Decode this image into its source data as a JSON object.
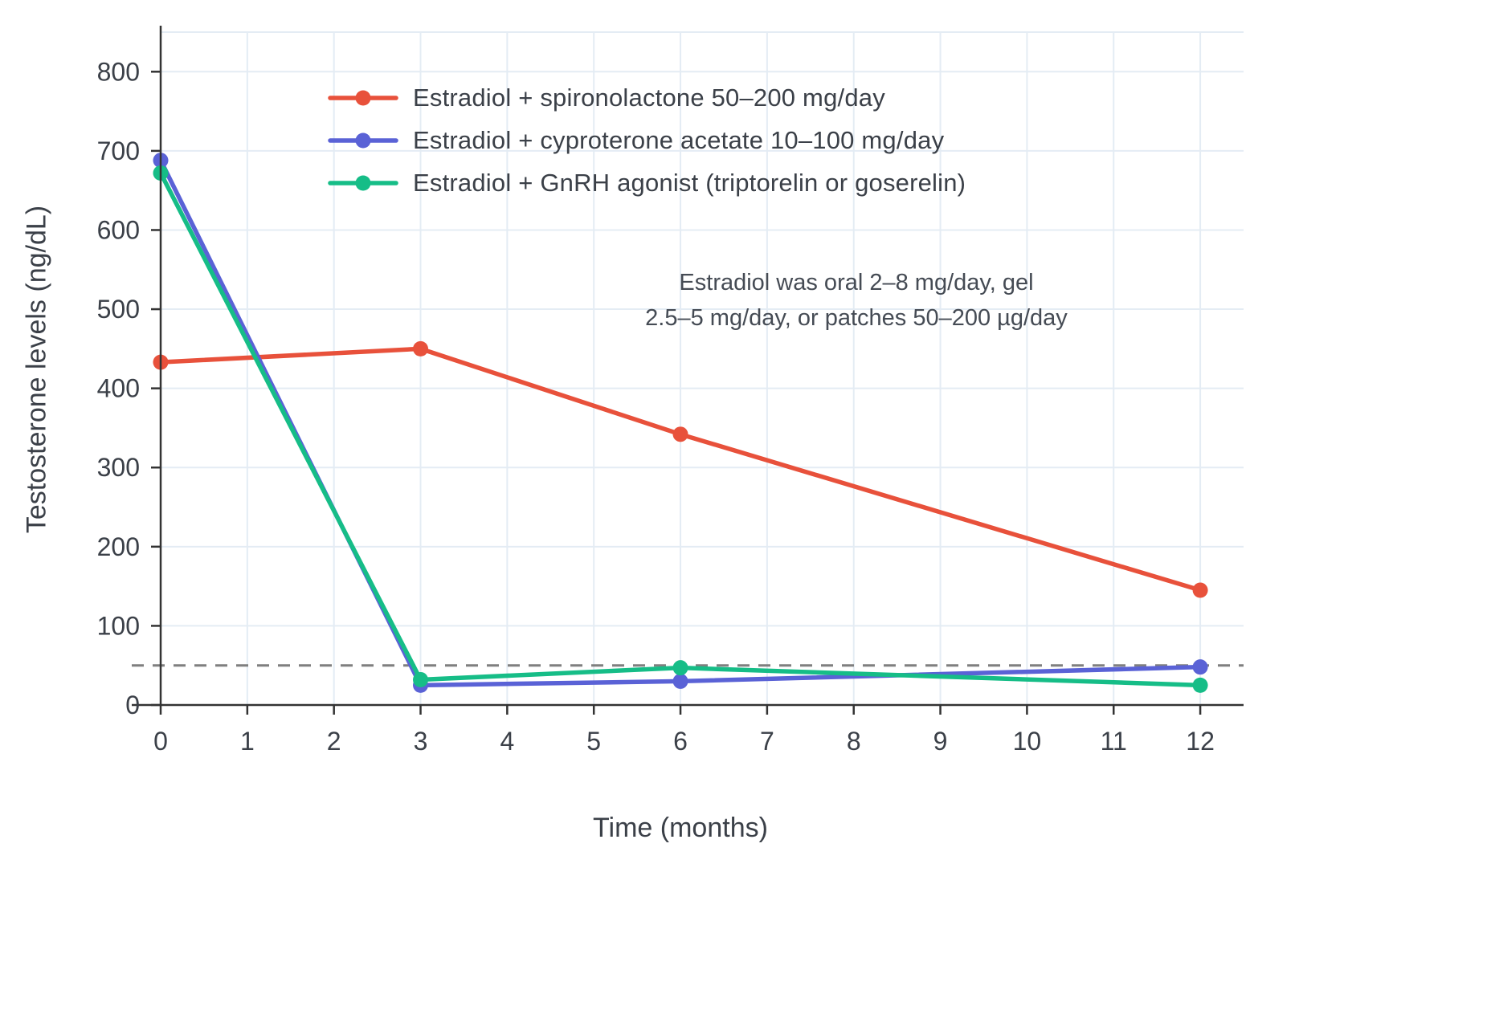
{
  "chart_data": {
    "type": "line",
    "title": "",
    "xlabel": "Time (months)",
    "ylabel": "Testosterone levels (ng/dL)",
    "x": [
      0,
      3,
      6,
      12
    ],
    "xticks": [
      0,
      1,
      2,
      3,
      4,
      5,
      6,
      7,
      8,
      9,
      10,
      11,
      12
    ],
    "yticks": [
      0,
      100,
      200,
      300,
      400,
      500,
      600,
      700,
      800
    ],
    "xlim": [
      0,
      12.5
    ],
    "ylim": [
      0,
      850
    ],
    "grid": true,
    "grid_color": "#e4ecf4",
    "axis_color": "#333333",
    "tick_label_color": "#3b4048",
    "legend_position": "top-left-inside",
    "series": [
      {
        "name": "Estradiol + spironolactone 50–200 mg/day",
        "color": "#e8513b",
        "values": [
          433,
          450,
          342,
          145
        ]
      },
      {
        "name": "Estradiol + cyproterone acetate 10–100 mg/day",
        "color": "#5a62d6",
        "values": [
          688,
          25,
          30,
          48
        ]
      },
      {
        "name": "Estradiol + GnRH agonist (triptorelin or goserelin)",
        "color": "#16bd87",
        "values": [
          672,
          32,
          47,
          25
        ]
      }
    ],
    "reference_line": {
      "y": 50,
      "style": "dashed",
      "color": "#7f7f7f"
    },
    "annotation": {
      "lines": {
        "0": "Estradiol was oral 2–8 mg/day, gel",
        "1": "2.5–5 mg/day, or patches 50–200 µg/day"
      }
    }
  }
}
